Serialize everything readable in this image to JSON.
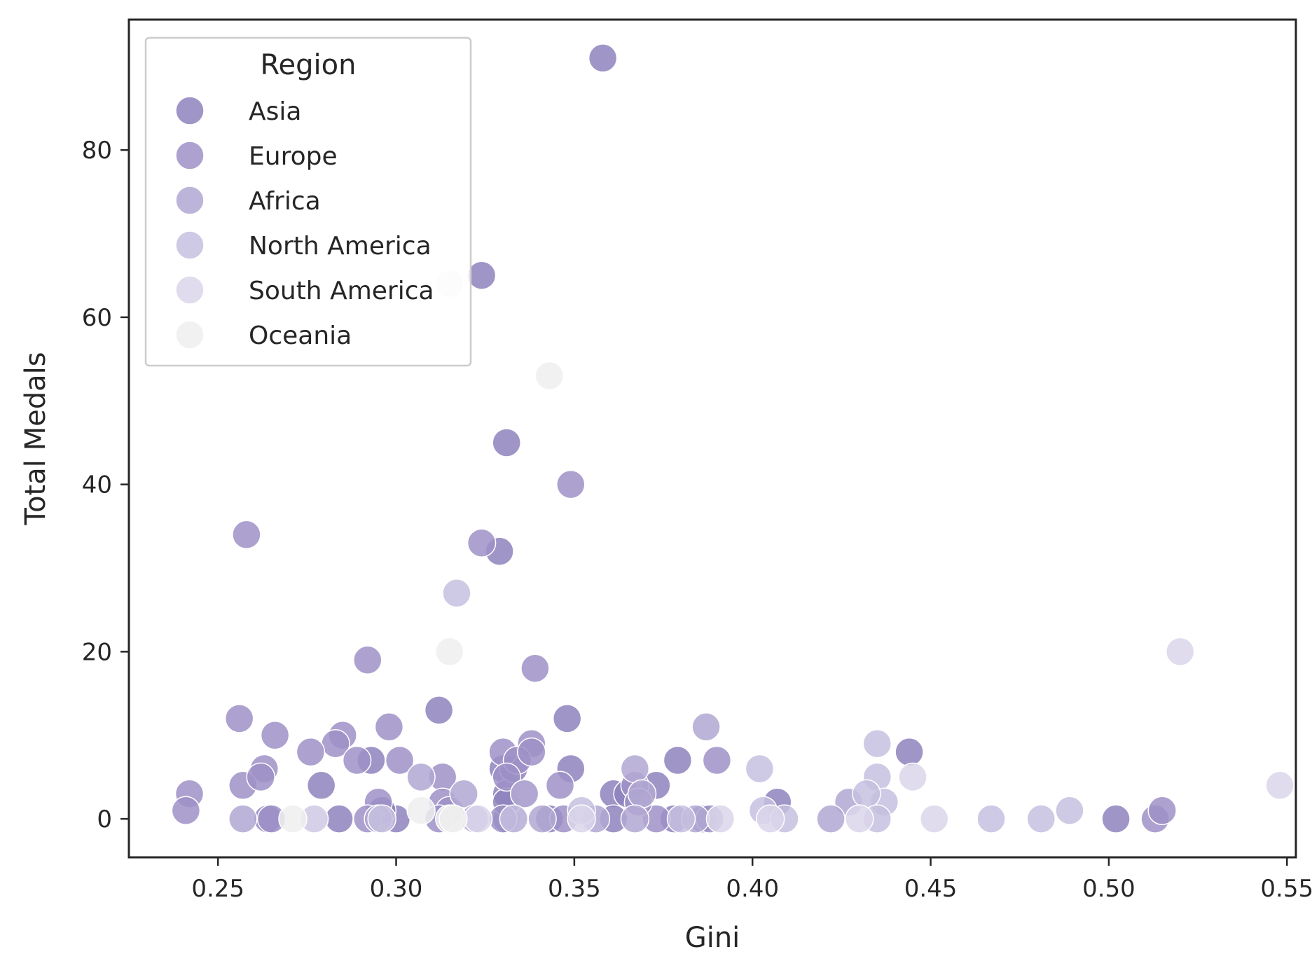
{
  "chart_data": {
    "type": "scatter",
    "title": "",
    "xlabel": "Gini",
    "ylabel": "Total Medals",
    "xlim": [
      0.225,
      0.5525
    ],
    "ylim": [
      -4.6,
      95.6
    ],
    "xticks": [
      0.25,
      0.3,
      0.35,
      0.4,
      0.45,
      0.5,
      0.55
    ],
    "xtick_labels": [
      "0.25",
      "0.30",
      "0.35",
      "0.40",
      "0.45",
      "0.50",
      "0.55"
    ],
    "yticks": [
      0,
      20,
      40,
      60,
      80
    ],
    "ytick_labels": [
      "0",
      "20",
      "40",
      "60",
      "80"
    ],
    "grid": false,
    "legend": {
      "title": "Region",
      "placement": "top-left"
    },
    "series": [
      {
        "name": "Asia",
        "color": "#8e82bd",
        "points": [
          [
            0.358,
            91
          ],
          [
            0.324,
            65
          ],
          [
            0.331,
            45
          ],
          [
            0.329,
            32
          ],
          [
            0.312,
            13
          ],
          [
            0.348,
            12
          ],
          [
            0.33,
            6
          ],
          [
            0.331,
            3
          ],
          [
            0.333,
            6
          ],
          [
            0.361,
            3
          ],
          [
            0.373,
            4
          ],
          [
            0.379,
            7
          ],
          [
            0.407,
            2
          ],
          [
            0.444,
            8
          ],
          [
            0.502,
            0
          ],
          [
            0.331,
            0
          ],
          [
            0.333,
            0
          ],
          [
            0.361,
            0
          ],
          [
            0.343,
            0
          ],
          [
            0.386,
            0
          ],
          [
            0.279,
            4
          ],
          [
            0.284,
            0
          ],
          [
            0.293,
            7
          ],
          [
            0.3,
            0
          ],
          [
            0.296,
            1
          ],
          [
            0.264,
            0
          ],
          [
            0.331,
            2
          ],
          [
            0.349,
            6
          ],
          [
            0.365,
            3
          ],
          [
            0.378,
            0
          ]
        ]
      },
      {
        "name": "Europe",
        "color": "#9d91c7",
        "points": [
          [
            0.349,
            40
          ],
          [
            0.324,
            33
          ],
          [
            0.258,
            34
          ],
          [
            0.292,
            19
          ],
          [
            0.339,
            18
          ],
          [
            0.298,
            11
          ],
          [
            0.256,
            12
          ],
          [
            0.285,
            10
          ],
          [
            0.266,
            10
          ],
          [
            0.283,
            9
          ],
          [
            0.338,
            9
          ],
          [
            0.276,
            8
          ],
          [
            0.33,
            8
          ],
          [
            0.289,
            7
          ],
          [
            0.301,
            7
          ],
          [
            0.334,
            7
          ],
          [
            0.39,
            7
          ],
          [
            0.263,
            6
          ],
          [
            0.331,
            5
          ],
          [
            0.313,
            5
          ],
          [
            0.257,
            4
          ],
          [
            0.262,
            5
          ],
          [
            0.346,
            4
          ],
          [
            0.367,
            4
          ],
          [
            0.242,
            3
          ],
          [
            0.241,
            1
          ],
          [
            0.295,
            2
          ],
          [
            0.313,
            2
          ],
          [
            0.315,
            1
          ],
          [
            0.265,
            0
          ],
          [
            0.292,
            0
          ],
          [
            0.312,
            0
          ],
          [
            0.33,
            0
          ],
          [
            0.347,
            0
          ],
          [
            0.373,
            0
          ],
          [
            0.388,
            0
          ],
          [
            0.513,
            0
          ],
          [
            0.515,
            1
          ],
          [
            0.338,
            8
          ],
          [
            0.336,
            3
          ],
          [
            0.368,
            2
          ]
        ]
      },
      {
        "name": "Africa",
        "color": "#b1a8d2",
        "points": [
          [
            0.387,
            11
          ],
          [
            0.367,
            6
          ],
          [
            0.307,
            5
          ],
          [
            0.319,
            3
          ],
          [
            0.336,
            3
          ],
          [
            0.369,
            3
          ],
          [
            0.427,
            2
          ],
          [
            0.295,
            0
          ],
          [
            0.322,
            0
          ],
          [
            0.341,
            0
          ],
          [
            0.356,
            0
          ],
          [
            0.367,
            0
          ],
          [
            0.384,
            0
          ],
          [
            0.422,
            0
          ],
          [
            0.257,
            0
          ],
          [
            0.277,
            0
          ]
        ]
      },
      {
        "name": "North America",
        "color": "#c5bfdf",
        "points": [
          [
            0.317,
            27
          ],
          [
            0.435,
            9
          ],
          [
            0.402,
            6
          ],
          [
            0.435,
            5
          ],
          [
            0.437,
            2
          ],
          [
            0.432,
            3
          ],
          [
            0.489,
            1
          ],
          [
            0.481,
            0
          ],
          [
            0.467,
            0
          ],
          [
            0.435,
            0
          ],
          [
            0.403,
            1
          ],
          [
            0.409,
            0
          ],
          [
            0.333,
            0
          ],
          [
            0.352,
            1
          ],
          [
            0.296,
            0
          ],
          [
            0.38,
            0
          ]
        ]
      },
      {
        "name": "South America",
        "color": "#dad6ea",
        "points": [
          [
            0.52,
            20
          ],
          [
            0.548,
            4
          ],
          [
            0.445,
            5
          ],
          [
            0.43,
            0
          ],
          [
            0.451,
            0
          ],
          [
            0.405,
            0
          ],
          [
            0.391,
            0
          ],
          [
            0.352,
            0
          ],
          [
            0.323,
            0
          ],
          [
            0.277,
            0
          ]
        ]
      },
      {
        "name": "Oceania",
        "color": "#eeeeef",
        "points": [
          [
            0.315,
            64
          ],
          [
            0.343,
            53
          ],
          [
            0.315,
            20
          ],
          [
            0.307,
            1
          ],
          [
            0.315,
            0
          ],
          [
            0.271,
            0
          ],
          [
            0.316,
            0
          ]
        ]
      }
    ]
  }
}
